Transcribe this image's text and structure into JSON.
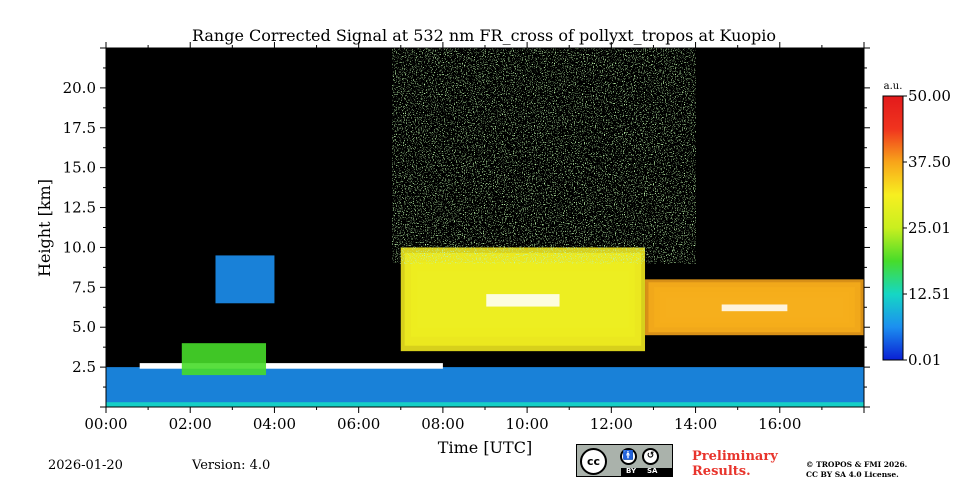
{
  "chart_data": {
    "type": "heatmap",
    "title": "Range Corrected Signal at 532 nm FR_cross of pollyxt_tropos at Kuopio",
    "xlabel": "Time [UTC]",
    "ylabel": "Height [km]",
    "xlim": [
      0,
      18
    ],
    "ylim": [
      0,
      22.5
    ],
    "x_ticks": [
      0,
      2,
      4,
      6,
      8,
      10,
      12,
      14,
      16
    ],
    "x_tick_labels": [
      "00:00",
      "02:00",
      "04:00",
      "06:00",
      "08:00",
      "10:00",
      "12:00",
      "14:00",
      "16:00"
    ],
    "y_ticks": [
      2.5,
      5.0,
      7.5,
      10.0,
      12.5,
      15.0,
      17.5,
      20.0
    ],
    "y_tick_labels": [
      "2.5",
      "5.0",
      "7.5",
      "10.0",
      "12.5",
      "15.0",
      "17.5",
      "20.0"
    ],
    "colorbar": {
      "unit": "a.u.",
      "range": [
        0.01,
        50.0
      ],
      "ticks": [
        0.01,
        12.51,
        25.01,
        37.5,
        50.0
      ],
      "tick_labels": [
        "0.01",
        "12.51",
        "25.01",
        "37.50",
        "50.00"
      ],
      "colormap": [
        "#0a1fd4",
        "#1c8ff0",
        "#15d7c4",
        "#47dc2a",
        "#c9ef1f",
        "#f7ef20",
        "#f8a51a",
        "#f0341e",
        "#e31a1c"
      ]
    },
    "features": [
      {
        "name": "boundary-layer",
        "x_range": [
          0,
          18
        ],
        "y_range": [
          0,
          2.5
        ],
        "level": 4
      },
      {
        "name": "surface-layer",
        "x_range": [
          0,
          18
        ],
        "y_range": [
          0,
          0.3
        ],
        "level": 12
      },
      {
        "name": "low-cloud-layer",
        "x_range": [
          0.8,
          8.0
        ],
        "y_range": [
          2.4,
          2.75
        ],
        "level": 50
      },
      {
        "name": "cloud-cluster-early",
        "x_range": [
          2.6,
          4.0
        ],
        "y_range": [
          6.5,
          9.5
        ],
        "level": 8
      },
      {
        "name": "cloud-cluster-low",
        "x_range": [
          1.8,
          3.8
        ],
        "y_range": [
          2.0,
          4.0
        ],
        "level": 16
      },
      {
        "name": "cloud-cluster-main",
        "x_range": [
          7.0,
          12.8
        ],
        "y_range": [
          3.5,
          10.0
        ],
        "level": 30
      },
      {
        "name": "cloud-layer-afternoon",
        "x_range": [
          12.8,
          18
        ],
        "y_range": [
          4.5,
          8.0
        ],
        "level": 40
      },
      {
        "name": "noise-region",
        "x_range": [
          6.8,
          14.0
        ],
        "y_range": [
          9.0,
          22.5
        ],
        "level": 20
      }
    ]
  },
  "footer": {
    "date": "2026-01-20",
    "version": "Version: 4.0",
    "preliminary_line1": "Preliminary",
    "preliminary_line2": "Results.",
    "copyright_line1": "© TROPOS & FMI 2026.",
    "copyright_line2": "CC BY SA 4.0 License.",
    "license_badge": {
      "cc": "cc",
      "by": "BY",
      "sa": "SA"
    }
  }
}
